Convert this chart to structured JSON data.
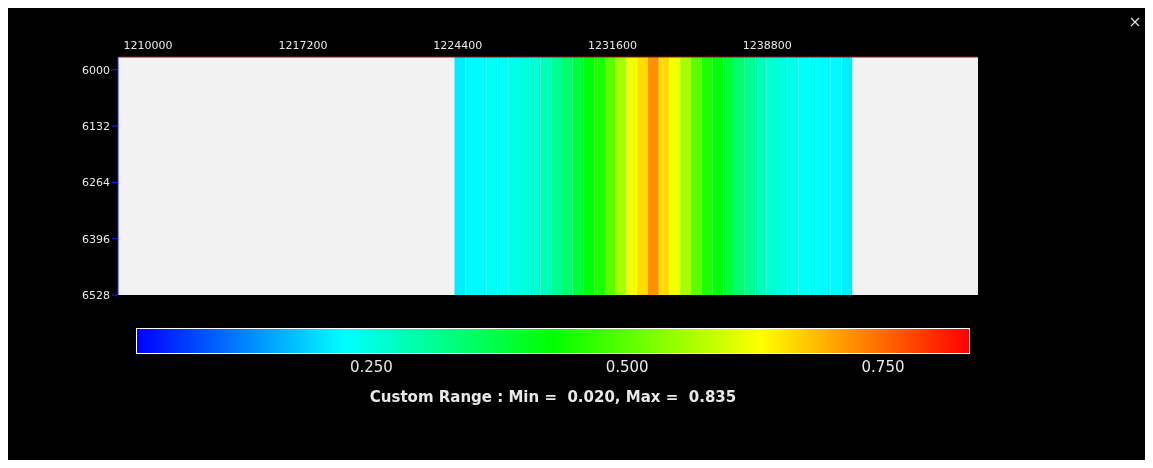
{
  "chart_data": {
    "type": "heatmap",
    "x": [
      1224500,
      1225000,
      1225500,
      1226000,
      1226500,
      1227000,
      1227500,
      1228000,
      1228500,
      1229000,
      1229500,
      1230000,
      1230500,
      1231000,
      1231500,
      1232000,
      1232500,
      1233000,
      1233500,
      1234000,
      1234500,
      1235000,
      1235500,
      1236000,
      1236500,
      1237000,
      1237500,
      1238000,
      1238500,
      1239000,
      1239500,
      1240000,
      1240500,
      1241000,
      1241500,
      1242000,
      1242500
    ],
    "cells": [
      [
        0.21,
        0.22,
        0.22,
        0.23,
        0.23,
        0.24,
        0.25,
        0.26,
        0.28,
        0.31,
        0.34,
        0.38,
        0.42,
        0.45,
        0.5,
        0.56,
        0.62,
        0.66,
        0.72,
        0.66,
        0.62,
        0.56,
        0.5,
        0.45,
        0.42,
        0.38,
        0.34,
        0.31,
        0.28,
        0.26,
        0.25,
        0.24,
        0.23,
        0.23,
        0.22,
        0.22,
        0.21
      ]
    ],
    "xlim": [
      1208600,
      1248600
    ],
    "xticks": [
      1210000,
      1217200,
      1224400,
      1231600,
      1238800
    ],
    "ylim": [
      6528,
      5970
    ],
    "yticks": [
      6000,
      6132,
      6264,
      6396,
      6528
    ],
    "clim": [
      0.02,
      0.835
    ],
    "cticks": [
      {
        "value": 0.25,
        "label": "0.250"
      },
      {
        "value": 0.5,
        "label": "0.500"
      },
      {
        "value": 0.75,
        "label": "0.750"
      }
    ],
    "annotations": [
      "Custom Range : Min =  0.020, Max =  0.835"
    ]
  }
}
